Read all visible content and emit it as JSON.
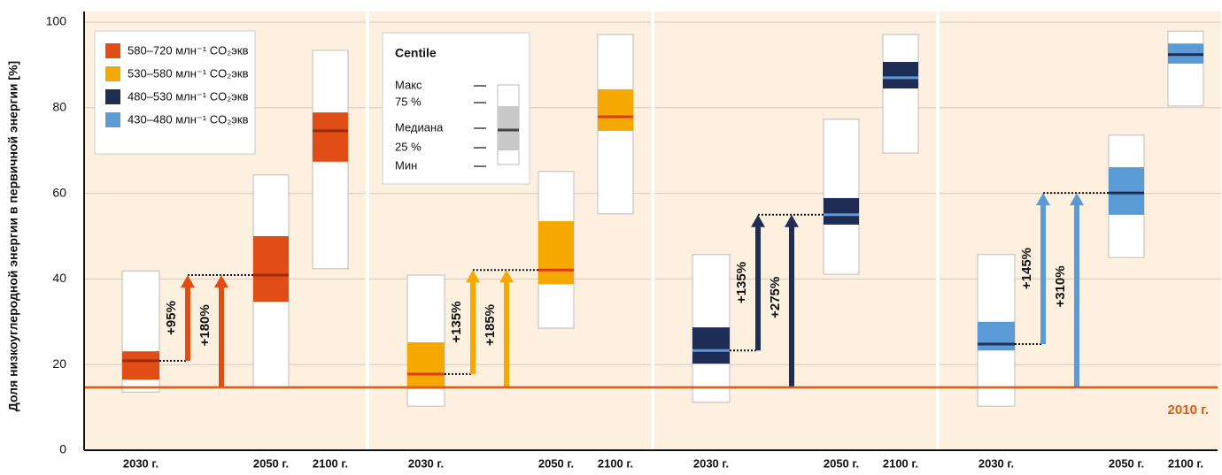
{
  "chart_data": {
    "type": "box",
    "y_label": "Доля низкоуглеродной энергии в первичной энергии [%]",
    "ylim": [
      0,
      100
    ],
    "yticks": [
      0,
      20,
      40,
      60,
      80,
      100
    ],
    "grid": true,
    "categories": [
      "2030 г.",
      "2050 г.",
      "2100 г."
    ],
    "baseline": {
      "value": 14.7,
      "label": "2010 г.",
      "color": "#e05a1a"
    },
    "series": [
      {
        "name": "580–720 млн⁻¹ CO₂экв",
        "color": "#e04e16",
        "median_color": "#9e2a12",
        "boxes": [
          {
            "min": 13.6,
            "q25": 16.5,
            "median": 20.9,
            "q75": 23.1,
            "max": 41.9
          },
          {
            "min": 14.7,
            "q25": 34.7,
            "median": 40.9,
            "q75": 50.0,
            "max": 64.3
          },
          {
            "min": 42.4,
            "q25": 67.4,
            "median": 74.6,
            "q75": 78.9,
            "max": 93.4
          }
        ],
        "arrow_labels": [
          "+95%",
          "+180%"
        ]
      },
      {
        "name": "530–580 млн⁻¹ CO₂экв",
        "color": "#f5a800",
        "median_color": "#e03a1a",
        "boxes": [
          {
            "min": 10.3,
            "q25": 14.3,
            "median": 17.8,
            "q75": 25.2,
            "max": 40.9
          },
          {
            "min": 28.5,
            "q25": 38.8,
            "median": 42.1,
            "q75": 53.5,
            "max": 65.1
          },
          {
            "min": 55.2,
            "q25": 74.6,
            "median": 77.9,
            "q75": 84.3,
            "max": 97.1
          }
        ],
        "arrow_labels": [
          "+135%",
          "+185%"
        ]
      },
      {
        "name": "480–530 млн⁻¹ CO₂экв",
        "color": "#1f2d56",
        "median_color": "#5b9bd5",
        "boxes": [
          {
            "min": 11.2,
            "q25": 20.2,
            "median": 23.3,
            "q75": 28.7,
            "max": 45.7
          },
          {
            "min": 41.1,
            "q25": 52.7,
            "median": 55.0,
            "q75": 58.9,
            "max": 77.3
          },
          {
            "min": 69.4,
            "q25": 84.5,
            "median": 87.0,
            "q75": 90.7,
            "max": 97.1
          }
        ],
        "arrow_labels": [
          "+135%",
          "+275%"
        ]
      },
      {
        "name": "430–480 млн⁻¹ CO₂экв",
        "color": "#5b9bd5",
        "median_color": "#1f2d56",
        "boxes": [
          {
            "min": 10.3,
            "q25": 23.3,
            "median": 24.8,
            "q75": 30.0,
            "max": 45.7
          },
          {
            "min": 45.0,
            "q25": 55.0,
            "median": 60.1,
            "q75": 66.1,
            "max": 73.6
          },
          {
            "min": 80.4,
            "q25": 90.3,
            "median": 92.4,
            "q75": 95.0,
            "max": 97.9
          }
        ],
        "arrow_labels": [
          "+145%",
          "+310%"
        ]
      }
    ],
    "centile_legend": {
      "title": "Centile",
      "labels": [
        "Макс",
        "75 %",
        "Медиана",
        "25 %",
        "Мин"
      ]
    }
  }
}
